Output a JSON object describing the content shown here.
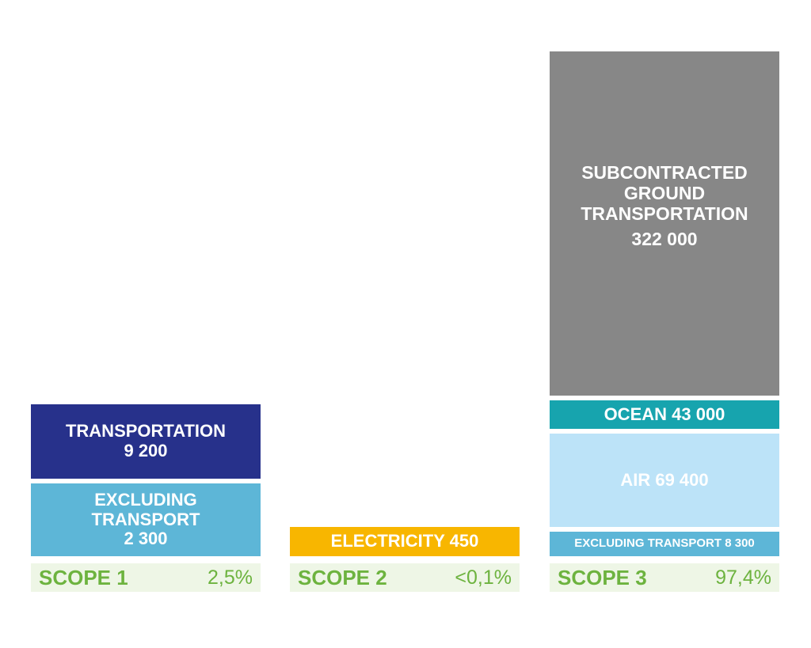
{
  "chart_data": {
    "type": "bar",
    "stacked": true,
    "colors": {
      "transportation": "#27318b",
      "excluding_transport": "#5db6d7",
      "electricity": "#f8b600",
      "subcontracted_ground": "#878787",
      "ocean": "#17a4ae",
      "air": "#bce3f8",
      "footer_bg": "#eef6e6",
      "scope_text": "#6db33f"
    },
    "categories": [
      {
        "name": "SCOPE 1",
        "percent": "2,5%",
        "segments": [
          {
            "lines": [
              "EXCLUDING",
              "TRANSPORT",
              "2 300"
            ],
            "value": 2300,
            "color_key": "excluding_transport"
          },
          {
            "lines": [
              "TRANSPORTATION",
              "9 200"
            ],
            "value": 9200,
            "color_key": "transportation"
          }
        ]
      },
      {
        "name": "SCOPE 2",
        "percent": "<0,1%",
        "segments": [
          {
            "lines": [
              "ELECTRICITY 450"
            ],
            "value": 450,
            "color_key": "electricity"
          }
        ]
      },
      {
        "name": "SCOPE 3",
        "percent": "97,4%",
        "segments": [
          {
            "lines": [
              "EXCLUDING TRANSPORT 8 300"
            ],
            "value": 8300,
            "color_key": "excluding_transport"
          },
          {
            "lines": [
              "AIR 69 400"
            ],
            "value": 69400,
            "color_key": "air"
          },
          {
            "lines": [
              "OCEAN 43 000"
            ],
            "value": 43000,
            "color_key": "ocean"
          },
          {
            "lines": [
              "SUBCONTRACTED",
              "GROUND",
              "TRANSPORTATION",
              "322 000"
            ],
            "value": 322000,
            "color_key": "subcontracted_ground"
          }
        ]
      }
    ]
  }
}
